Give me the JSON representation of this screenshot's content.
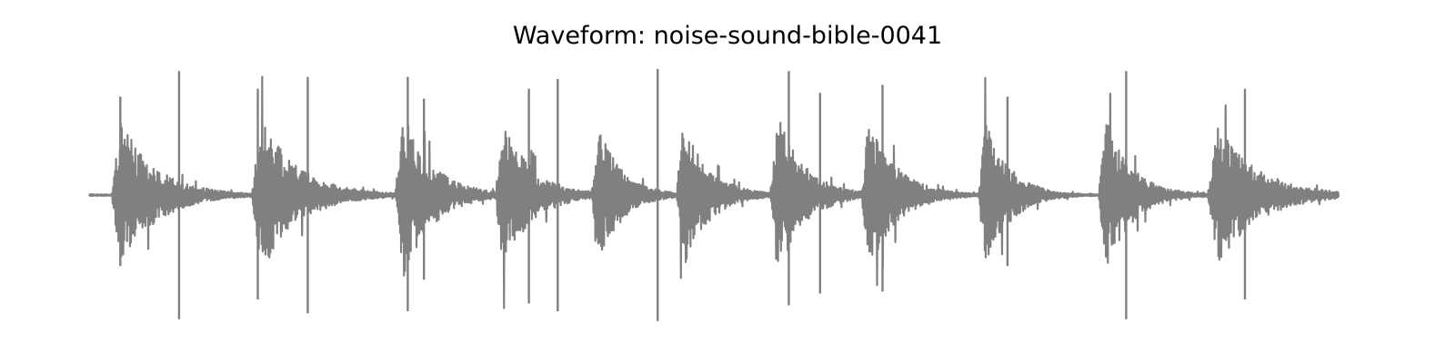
{
  "chart_data": {
    "type": "line",
    "title": "Waveform: noise-sound-bible-0041",
    "xlabel": "",
    "ylabel": "",
    "axes_visible": false,
    "grid": false,
    "color": "#808080",
    "ylim": [
      -1.0,
      1.0
    ],
    "bursts": [
      {
        "start": 0.018,
        "end": 0.108,
        "peak": 0.6,
        "spikes": [
          0.018,
          0.035,
          0.072
        ]
      },
      {
        "start": 0.13,
        "end": 0.225,
        "peak": 0.62,
        "spikes": [
          0.13,
          0.155,
          0.18
        ]
      },
      {
        "start": 0.245,
        "end": 0.32,
        "peak": 0.68,
        "spikes": [
          0.245,
          0.265,
          0.285
        ]
      },
      {
        "start": 0.325,
        "end": 0.4,
        "peak": 0.6,
        "spikes": [
          0.325,
          0.345
        ]
      },
      {
        "start": 0.402,
        "end": 0.462,
        "peak": 0.58,
        "spikes": [
          0.402,
          0.42
        ]
      },
      {
        "start": 0.47,
        "end": 0.535,
        "peak": 0.6,
        "spikes": [
          0.47,
          0.49
        ]
      },
      {
        "start": 0.545,
        "end": 0.615,
        "peak": 0.65,
        "spikes": [
          0.545,
          0.565,
          0.585
        ]
      },
      {
        "start": 0.618,
        "end": 0.69,
        "peak": 0.62,
        "spikes": [
          0.618,
          0.64
        ]
      },
      {
        "start": 0.712,
        "end": 0.775,
        "peak": 0.6,
        "spikes": [
          0.712,
          0.73
        ]
      },
      {
        "start": 0.808,
        "end": 0.875,
        "peak": 0.62,
        "spikes": [
          0.808,
          0.83
        ]
      },
      {
        "start": 0.895,
        "end": 1.0,
        "peak": 0.55,
        "spikes": [
          0.895,
          0.92,
          0.94
        ]
      }
    ],
    "peaks_upper": [
      0.5,
      0.63,
      0.54,
      0.6,
      0.6,
      0.49,
      0.54,
      0.59,
      0.64,
      0.63,
      0.52,
      0.56
    ],
    "peaks_lower": [
      -0.36,
      -0.63,
      -0.53,
      -0.6,
      -0.59,
      -0.43,
      -0.55,
      -0.59,
      -0.64,
      -0.56,
      -0.5,
      -0.49
    ]
  }
}
